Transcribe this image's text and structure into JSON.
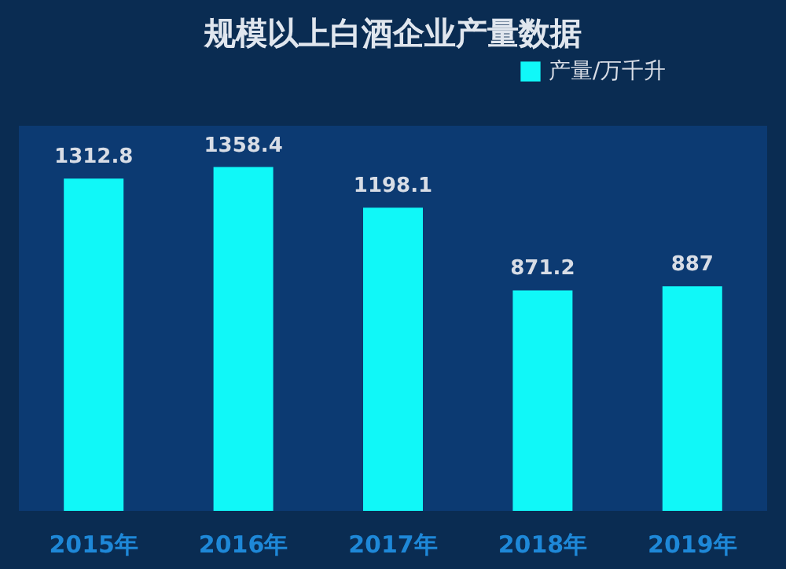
{
  "chart_data": {
    "type": "bar",
    "title": "规模以上白酒企业产量数据",
    "categories": [
      "2015年",
      "2016年",
      "2017年",
      "2018年",
      "2019年"
    ],
    "series": [
      {
        "name": "产量/万千升",
        "color": "#10f8f8",
        "values": [
          1312.8,
          1358.4,
          1198.1,
          871.2,
          887
        ]
      }
    ],
    "data_labels": true,
    "legend": "top right"
  }
}
